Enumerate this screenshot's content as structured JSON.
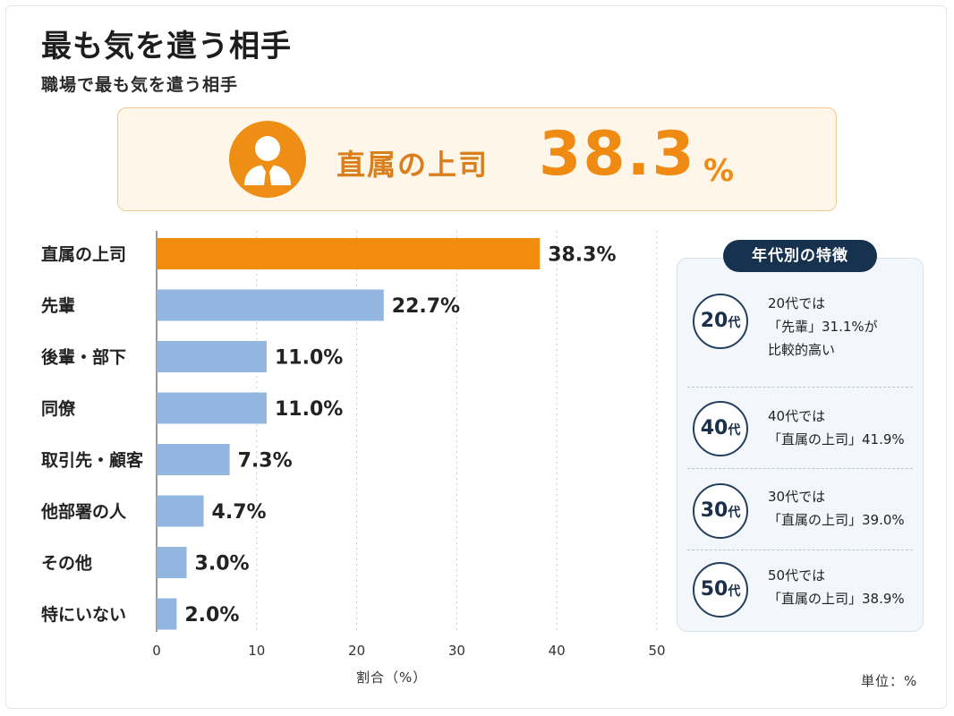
{
  "title": "最も気を遣う相手",
  "subtitle": "職場で最も気を遣う相手",
  "highlight": {
    "label": "直属の上司",
    "value": "38.3",
    "unit": "%",
    "icon": "person-suit-icon"
  },
  "chart_data": {
    "type": "bar",
    "orientation": "horizontal",
    "categories": [
      "直属の上司",
      "先輩",
      "後輩・部下",
      "同僚",
      "取引先・顧客",
      "他部署の人",
      "その他",
      "特にいない"
    ],
    "values": [
      38.3,
      22.7,
      11.0,
      11.0,
      7.3,
      4.7,
      3.0,
      2.0
    ],
    "data_labels": [
      "38.3%",
      "22.7%",
      "11.0%",
      "11.0%",
      "7.3%",
      "4.7%",
      "3.0%",
      "2.0%"
    ],
    "xlabel": "割合（%）",
    "ylabel": "",
    "xlim": [
      0,
      50
    ],
    "xticks": [
      0,
      10,
      20,
      30,
      40,
      50
    ],
    "grid": "vertical-dotted",
    "colors": {
      "highlight": "#f28c0f",
      "default": "#92b6e0"
    }
  },
  "unit_note": "単位：%",
  "side_panel": {
    "header": "年代別の特徴",
    "items": [
      {
        "age_num": "20",
        "age_suffix": "代",
        "lines": [
          "20代では",
          "「先輩」31.1%が",
          "比較的高い"
        ]
      },
      {
        "age_num": "40",
        "age_suffix": "代",
        "lines": [
          "40代では",
          "「直属の上司」41.9%"
        ]
      },
      {
        "age_num": "30",
        "age_suffix": "代",
        "lines": [
          "30代では",
          "「直属の上司」39.0%"
        ]
      },
      {
        "age_num": "50",
        "age_suffix": "代",
        "lines": [
          "50代では",
          "「直属の上司」38.9%"
        ]
      }
    ]
  }
}
